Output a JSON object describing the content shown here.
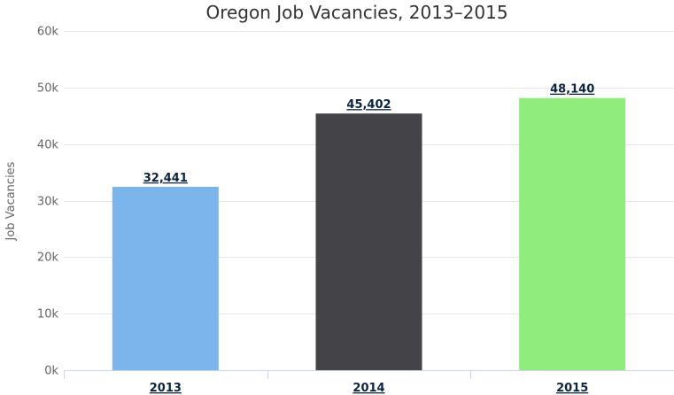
{
  "chart_data": {
    "type": "bar",
    "title": "Oregon Job Vacancies, 2013–2015",
    "xlabel": "",
    "ylabel": "Job Vacancies",
    "categories": [
      "2013",
      "2014",
      "2015"
    ],
    "values": [
      32441,
      45402,
      48140
    ],
    "data_labels": [
      "32,441",
      "45,402",
      "48,140"
    ],
    "colors": [
      "#7cb5ec",
      "#434348",
      "#90ed7d"
    ],
    "ylim": [
      0,
      60000
    ],
    "yticks": [
      0,
      10000,
      20000,
      30000,
      40000,
      50000,
      60000
    ],
    "ytick_labels": [
      "0k",
      "10k",
      "20k",
      "30k",
      "40k",
      "50k",
      "60k"
    ],
    "grid": true,
    "legend": "none"
  }
}
